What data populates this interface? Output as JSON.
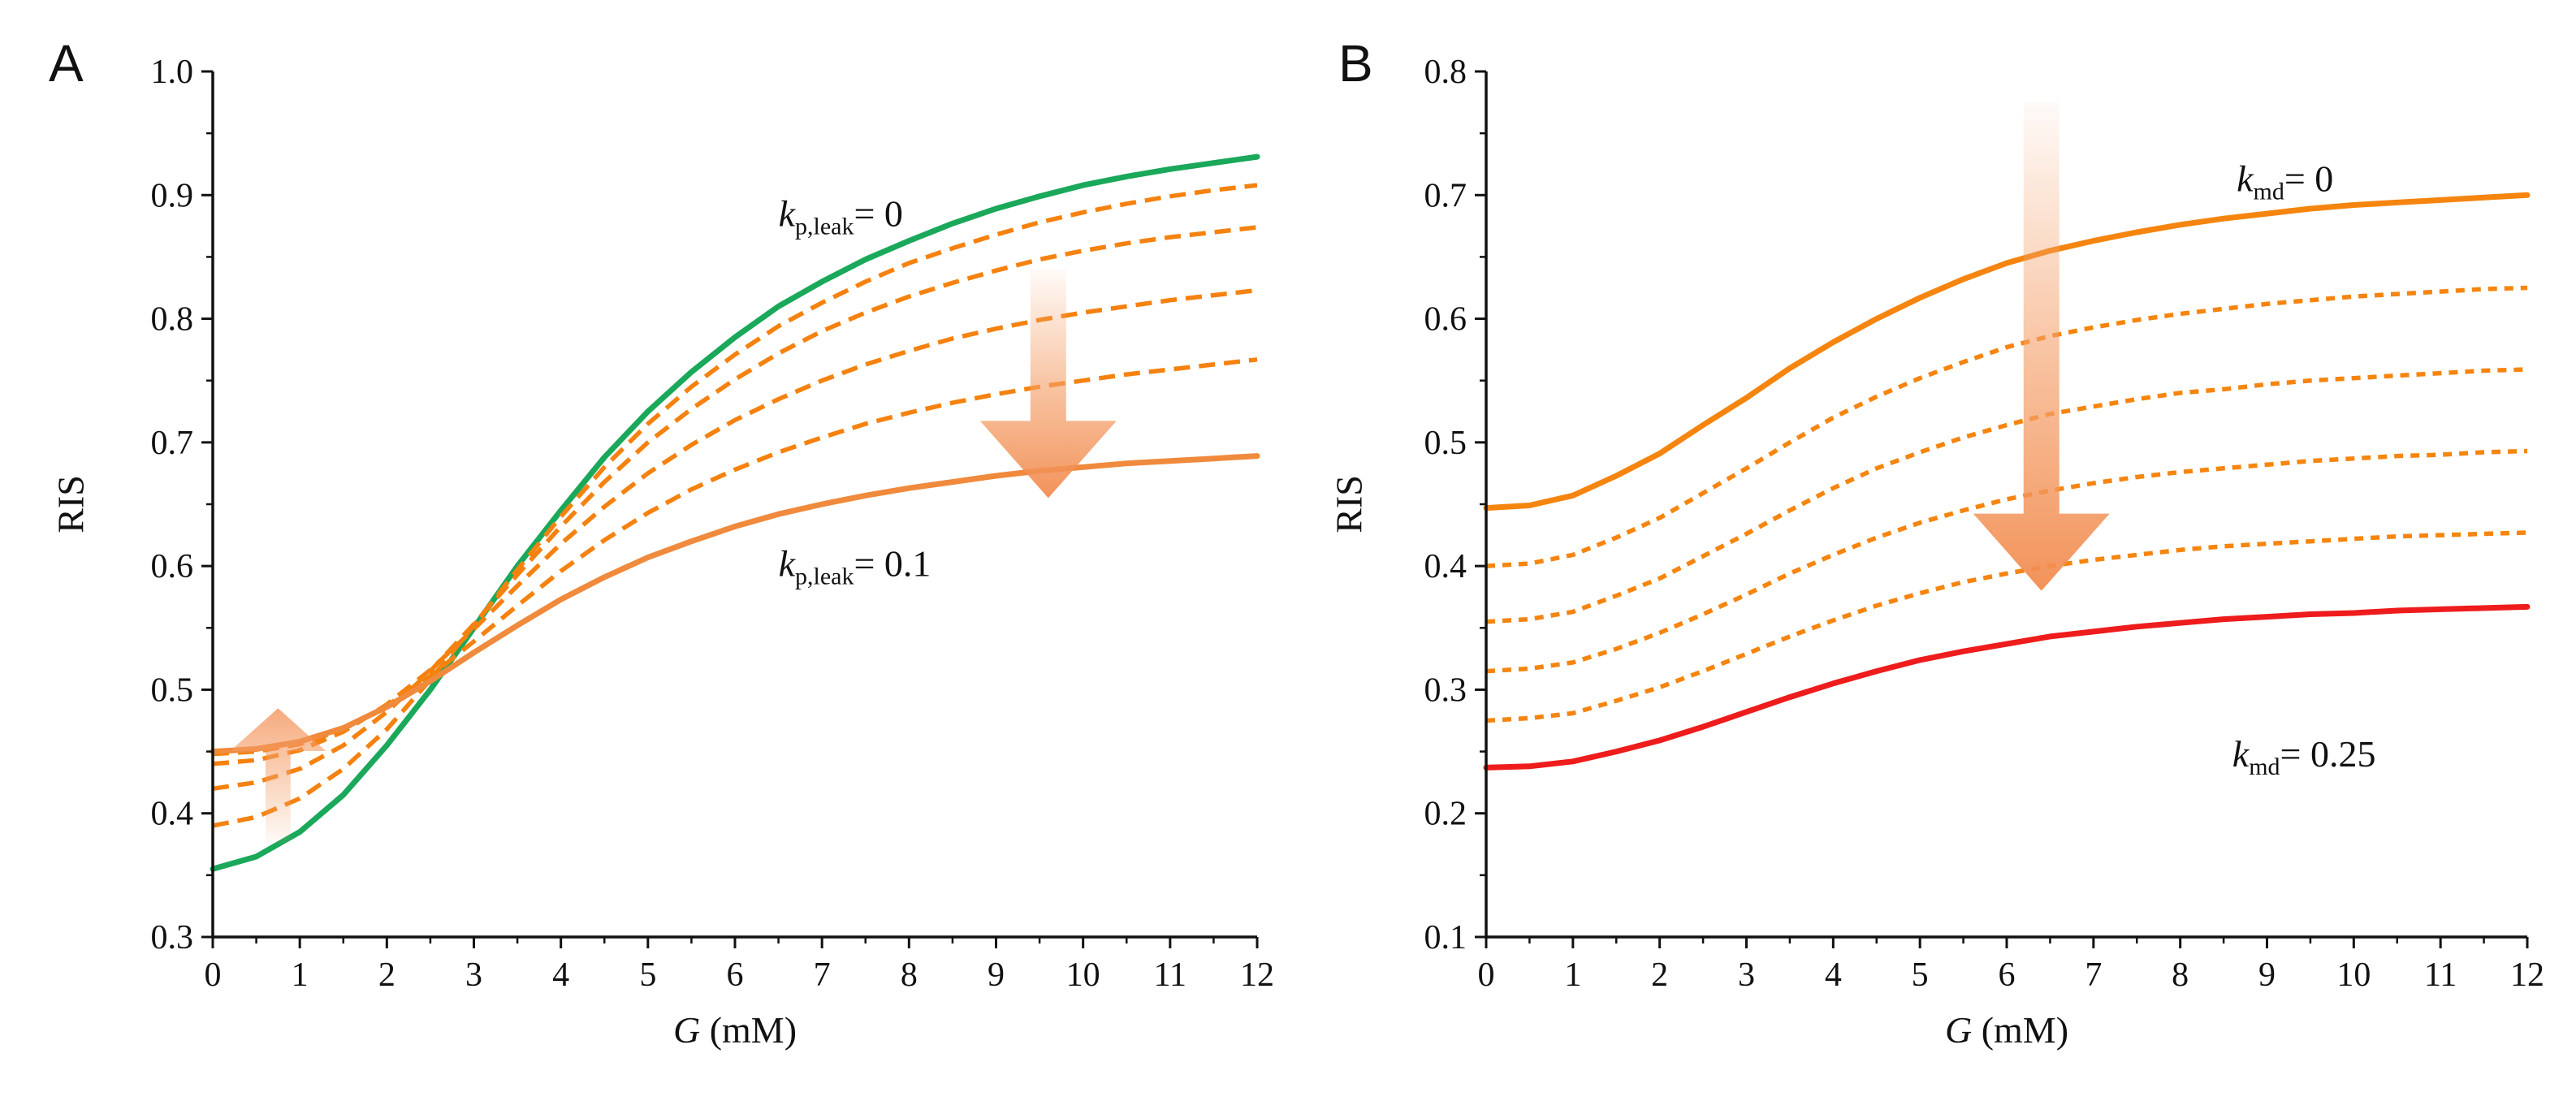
{
  "chart_data": [
    {
      "type": "line",
      "panel_label": "A",
      "xlabel": {
        "italic": "G",
        "rest": " (mM)"
      },
      "ylabel": "RIS",
      "xlim": [
        0,
        12
      ],
      "ylim": [
        0.3,
        1.0
      ],
      "x_ticks": [
        0,
        1,
        2,
        3,
        4,
        5,
        6,
        7,
        8,
        9,
        10,
        11,
        12
      ],
      "y_ticks": [
        "0.3",
        "0.4",
        "0.5",
        "0.6",
        "0.7",
        "0.8",
        "0.9",
        "1.0"
      ],
      "grid": false,
      "x": [
        0,
        0.5,
        1,
        1.5,
        2,
        2.5,
        3,
        3.5,
        4,
        4.5,
        5,
        5.5,
        6,
        6.5,
        7,
        7.5,
        8,
        8.5,
        9,
        9.5,
        10,
        10.5,
        11,
        11.5,
        12
      ],
      "series": [
        {
          "style": "solid",
          "color": "#1aa85a",
          "values": [
            0.355,
            0.365,
            0.385,
            0.415,
            0.455,
            0.5,
            0.55,
            0.6,
            0.645,
            0.688,
            0.725,
            0.757,
            0.785,
            0.81,
            0.83,
            0.848,
            0.863,
            0.877,
            0.889,
            0.899,
            0.908,
            0.915,
            0.921,
            0.926,
            0.931
          ]
        },
        {
          "style": "dashed",
          "color": "#f5820f",
          "values": [
            0.39,
            0.397,
            0.412,
            0.436,
            0.468,
            0.508,
            0.552,
            0.597,
            0.64,
            0.68,
            0.715,
            0.745,
            0.771,
            0.794,
            0.813,
            0.83,
            0.845,
            0.857,
            0.868,
            0.878,
            0.886,
            0.893,
            0.899,
            0.904,
            0.908
          ]
        },
        {
          "style": "dashed",
          "color": "#f5820f",
          "values": [
            0.42,
            0.425,
            0.436,
            0.455,
            0.482,
            0.515,
            0.553,
            0.593,
            0.632,
            0.668,
            0.7,
            0.727,
            0.751,
            0.772,
            0.79,
            0.805,
            0.818,
            0.829,
            0.839,
            0.848,
            0.855,
            0.861,
            0.866,
            0.87,
            0.874
          ]
        },
        {
          "style": "dashed",
          "color": "#f5820f",
          "values": [
            0.44,
            0.443,
            0.451,
            0.466,
            0.488,
            0.516,
            0.549,
            0.584,
            0.618,
            0.648,
            0.675,
            0.698,
            0.718,
            0.735,
            0.75,
            0.763,
            0.774,
            0.784,
            0.792,
            0.799,
            0.805,
            0.81,
            0.815,
            0.819,
            0.823
          ]
        },
        {
          "style": "dashed",
          "color": "#f5820f",
          "values": [
            0.448,
            0.45,
            0.456,
            0.468,
            0.487,
            0.511,
            0.539,
            0.568,
            0.596,
            0.621,
            0.643,
            0.662,
            0.678,
            0.692,
            0.704,
            0.715,
            0.724,
            0.732,
            0.739,
            0.745,
            0.75,
            0.755,
            0.759,
            0.763,
            0.767
          ]
        },
        {
          "style": "solid",
          "color": "#f08a3c",
          "values": [
            0.45,
            0.452,
            0.458,
            0.469,
            0.486,
            0.507,
            0.53,
            0.552,
            0.573,
            0.591,
            0.607,
            0.62,
            0.632,
            0.642,
            0.65,
            0.657,
            0.663,
            0.668,
            0.673,
            0.677,
            0.68,
            0.683,
            0.685,
            0.687,
            0.689
          ]
        }
      ],
      "annotations": [
        {
          "base": "k",
          "sub": "p,leak",
          "value": "= 0",
          "x": 6.5,
          "y": 0.875
        },
        {
          "base": "k",
          "sub": "p,leak",
          "value": "= 0.1",
          "x": 6.5,
          "y": 0.592
        }
      ],
      "arrows": [
        {
          "direction": "down",
          "x": 9.6,
          "y_from": 0.84,
          "y_to": 0.655
        },
        {
          "direction": "up",
          "x": 0.75,
          "y_from": 0.375,
          "y_to": 0.485
        }
      ]
    },
    {
      "type": "line",
      "panel_label": "B",
      "xlabel": {
        "italic": "G",
        "rest": " (mM)"
      },
      "ylabel": "RIS",
      "xlim": [
        0,
        12
      ],
      "ylim": [
        0.1,
        0.8
      ],
      "x_ticks": [
        0,
        1,
        2,
        3,
        4,
        5,
        6,
        7,
        8,
        9,
        10,
        11,
        12
      ],
      "y_ticks": [
        "0.1",
        "0.2",
        "0.3",
        "0.4",
        "0.5",
        "0.6",
        "0.7",
        "0.8"
      ],
      "grid": false,
      "x": [
        0,
        0.5,
        1,
        1.5,
        2,
        2.5,
        3,
        3.5,
        4,
        4.5,
        5,
        5.5,
        6,
        6.5,
        7,
        7.5,
        8,
        8.5,
        9,
        9.5,
        10,
        10.5,
        11,
        11.5,
        12
      ],
      "series": [
        {
          "style": "solid",
          "color": "#f5850f",
          "values": [
            0.447,
            0.449,
            0.457,
            0.473,
            0.491,
            0.514,
            0.536,
            0.56,
            0.581,
            0.6,
            0.617,
            0.632,
            0.645,
            0.655,
            0.663,
            0.67,
            0.676,
            0.681,
            0.685,
            0.689,
            0.692,
            0.694,
            0.696,
            0.698,
            0.7
          ]
        },
        {
          "style": "dotted",
          "color": "#f5850f",
          "values": [
            0.4,
            0.402,
            0.409,
            0.423,
            0.439,
            0.459,
            0.479,
            0.5,
            0.52,
            0.537,
            0.552,
            0.565,
            0.577,
            0.586,
            0.593,
            0.599,
            0.604,
            0.608,
            0.612,
            0.615,
            0.618,
            0.62,
            0.622,
            0.624,
            0.625
          ]
        },
        {
          "style": "dotted",
          "color": "#f5850f",
          "values": [
            0.355,
            0.357,
            0.363,
            0.376,
            0.39,
            0.408,
            0.426,
            0.445,
            0.463,
            0.479,
            0.492,
            0.504,
            0.514,
            0.523,
            0.529,
            0.535,
            0.54,
            0.543,
            0.547,
            0.55,
            0.552,
            0.554,
            0.556,
            0.558,
            0.559
          ]
        },
        {
          "style": "dotted",
          "color": "#f5850f",
          "values": [
            0.315,
            0.317,
            0.322,
            0.333,
            0.346,
            0.361,
            0.377,
            0.394,
            0.409,
            0.423,
            0.435,
            0.445,
            0.454,
            0.461,
            0.467,
            0.472,
            0.476,
            0.479,
            0.482,
            0.485,
            0.487,
            0.489,
            0.49,
            0.492,
            0.493
          ]
        },
        {
          "style": "dotted",
          "color": "#f5850f",
          "values": [
            0.275,
            0.277,
            0.281,
            0.291,
            0.302,
            0.315,
            0.329,
            0.343,
            0.356,
            0.368,
            0.378,
            0.387,
            0.394,
            0.4,
            0.405,
            0.409,
            0.413,
            0.416,
            0.418,
            0.42,
            0.422,
            0.424,
            0.425,
            0.426,
            0.427
          ]
        },
        {
          "style": "solid",
          "color": "#ee1c1c",
          "values": [
            0.237,
            0.238,
            0.242,
            0.25,
            0.259,
            0.27,
            0.282,
            0.294,
            0.305,
            0.315,
            0.324,
            0.331,
            0.337,
            0.343,
            0.347,
            0.351,
            0.354,
            0.357,
            0.359,
            0.361,
            0.362,
            0.364,
            0.365,
            0.366,
            0.367
          ]
        }
      ],
      "annotations": [
        {
          "base": "k",
          "sub": "md",
          "value": "= 0",
          "x": 8.65,
          "y": 0.703
        },
        {
          "base": "k",
          "sub": "md",
          "value": "= 0.25",
          "x": 8.6,
          "y": 0.238
        }
      ],
      "arrows": [
        {
          "direction": "down",
          "x": 6.4,
          "y_from": 0.775,
          "y_to": 0.38
        }
      ]
    }
  ]
}
